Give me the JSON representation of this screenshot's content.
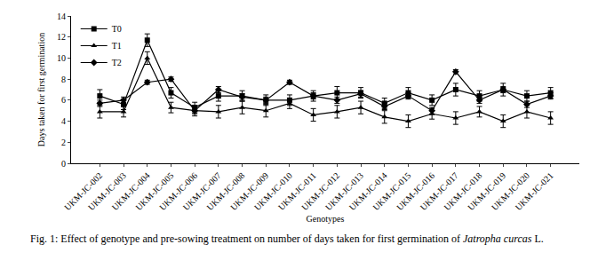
{
  "chart_data": {
    "type": "line",
    "x_label": "Genotypes",
    "y_label": "Days taken for first germination",
    "categories": [
      "UKM-JC-002",
      "UKM-JC-003",
      "UKM-JC-004",
      "UKM-JC-005",
      "UKM-JC-006",
      "UKM-JC-007",
      "UKM-JC-008",
      "UKM-JC-009",
      "UKM-JC-010",
      "UKM-JC-011",
      "UKM-JC-012",
      "UKM-JC-013",
      "UKM-JC-014",
      "UKM-JC-015",
      "UKM-JC-016",
      "UKM-JC-017",
      "UKM-JC-018",
      "UKM-JC-019",
      "UKM-JC-020",
      "UKM-JC-021"
    ],
    "series": [
      {
        "name": "T0",
        "color": "#000000",
        "marker": "square",
        "values": [
          6.4,
          5.6,
          11.7,
          6.7,
          5.3,
          6.4,
          6.4,
          6.0,
          6.0,
          6.4,
          6.7,
          6.7,
          5.7,
          6.7,
          6.0,
          7.0,
          6.4,
          7.0,
          6.4,
          6.7
        ],
        "errors": [
          0.6,
          0.5,
          0.6,
          0.5,
          0.5,
          0.5,
          0.5,
          0.5,
          0.5,
          0.5,
          0.6,
          0.5,
          0.5,
          0.5,
          0.5,
          0.6,
          0.5,
          0.6,
          0.5,
          0.5
        ]
      },
      {
        "name": "T1",
        "color": "#000000",
        "marker": "triangle-up",
        "values": [
          4.9,
          4.9,
          10.0,
          5.3,
          5.0,
          4.9,
          5.3,
          5.0,
          5.7,
          4.6,
          4.9,
          5.3,
          4.4,
          4.0,
          4.7,
          4.3,
          4.9,
          4.0,
          4.9,
          4.3
        ],
        "errors": [
          0.6,
          0.5,
          0.6,
          0.5,
          0.5,
          0.6,
          0.6,
          0.6,
          0.5,
          0.6,
          0.6,
          0.6,
          0.6,
          0.6,
          0.5,
          0.6,
          0.5,
          0.6,
          0.6,
          0.6
        ]
      },
      {
        "name": "T2",
        "color": "#000000",
        "marker": "diamond",
        "values": [
          5.7,
          6.0,
          7.7,
          8.0,
          5.0,
          7.0,
          6.3,
          6.0,
          7.7,
          6.4,
          6.0,
          6.6,
          5.4,
          6.4,
          5.0,
          8.7,
          6.0,
          7.0,
          5.6,
          6.4
        ],
        "errors": [
          0.3,
          0.3,
          0.2,
          0.2,
          0.3,
          0.3,
          0.3,
          0.3,
          0.2,
          0.3,
          0.3,
          0.3,
          0.3,
          0.3,
          0.3,
          0.2,
          0.3,
          0.3,
          0.3,
          0.3
        ]
      }
    ],
    "ylim": [
      0,
      14
    ],
    "yticks": [
      0,
      2,
      4,
      6,
      8,
      10,
      12,
      14
    ],
    "grid": false,
    "legend": "upper left",
    "caption": {
      "text": "Fig. 1: Effect of genotype and pre-sowing treatment on number of days taken for first germination of ",
      "italic": "Jatropha curcas",
      "suffix": " L."
    }
  }
}
